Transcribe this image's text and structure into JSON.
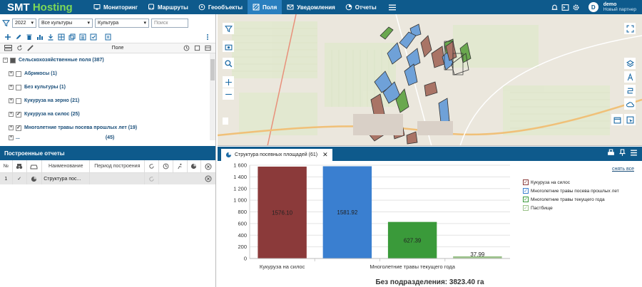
{
  "app": {
    "logo_part1": "SMT",
    "logo_part2": "Hosting"
  },
  "nav": [
    {
      "label": "Мониторинг",
      "icon": "monitor-icon"
    },
    {
      "label": "Маршруты",
      "icon": "bus-icon"
    },
    {
      "label": "Геообъекты",
      "icon": "geo-icon"
    },
    {
      "label": "Поля",
      "icon": "fields-icon",
      "active": true
    },
    {
      "label": "Уведомления",
      "icon": "envelope-icon"
    },
    {
      "label": "Отчеты",
      "icon": "chart-pie-icon"
    }
  ],
  "user": {
    "initial": "D",
    "name": "demo",
    "role": "Новый партнер"
  },
  "filters": {
    "year": "2022",
    "crop": "Все культуры",
    "group_by": "Культура",
    "search_placeholder": "Поиск"
  },
  "columns": {
    "field": "Поле"
  },
  "tree": {
    "root": "Сельскохозяйственные поля (387)",
    "items": [
      {
        "label": "Абрикосы (1)",
        "checked": false
      },
      {
        "label": "Без культуры (1)",
        "checked": false
      },
      {
        "label": "Кукуруза на зерно (21)",
        "checked": false
      },
      {
        "label": "Кукуруза на силос (25)",
        "checked": true
      },
      {
        "label": "Многолетние травы посева прошлых лет (19)",
        "checked": true
      },
      {
        "label": "...",
        "count": "(45)"
      }
    ]
  },
  "reports": {
    "title": "Построенные отчеты",
    "headers": {
      "num": "№",
      "name": "Наименование",
      "period": "Период построения"
    },
    "rows": [
      {
        "num": "1",
        "name": "Структура пос..."
      }
    ]
  },
  "chart_tab": {
    "title": "Структура посевных площадей (61)"
  },
  "reset_link": "снять все",
  "total": "Без подразделения: 3823.40 га",
  "colors": {
    "header": "#0e5a8c",
    "accent": "#7ed957"
  },
  "chart_data": {
    "type": "bar",
    "categories": [
      "Кукуруза на силос",
      "Многолетние травы посева прошлых лет",
      "Многолетние травы текущего года",
      "Пастбище"
    ],
    "x_tick_labels": [
      "Кукуруза на силос",
      "",
      "Многолетние травы текущего года",
      ""
    ],
    "values": [
      1576.1,
      1581.92,
      627.39,
      37.99
    ],
    "value_labels": [
      "1576.10",
      "1581.92",
      "627.39",
      "37.99"
    ],
    "colors": [
      "#8b3a3a",
      "#3a7fd0",
      "#3a9a3a",
      "#9bc28a"
    ],
    "ylim": [
      0,
      1600
    ],
    "yticks": [
      0,
      200,
      400,
      600,
      800,
      1000,
      1200,
      1400,
      1600
    ],
    "ytick_labels": [
      "0",
      "200",
      "400",
      "600",
      "800",
      "1 000",
      "1 200",
      "1 400",
      "1 600"
    ],
    "legend": [
      "Кукуруза на силос",
      "Многолетние травы посева прошлых лет",
      "Многолетние травы текущего года",
      "Пастбище"
    ],
    "legend_position": "right",
    "grid": true
  }
}
